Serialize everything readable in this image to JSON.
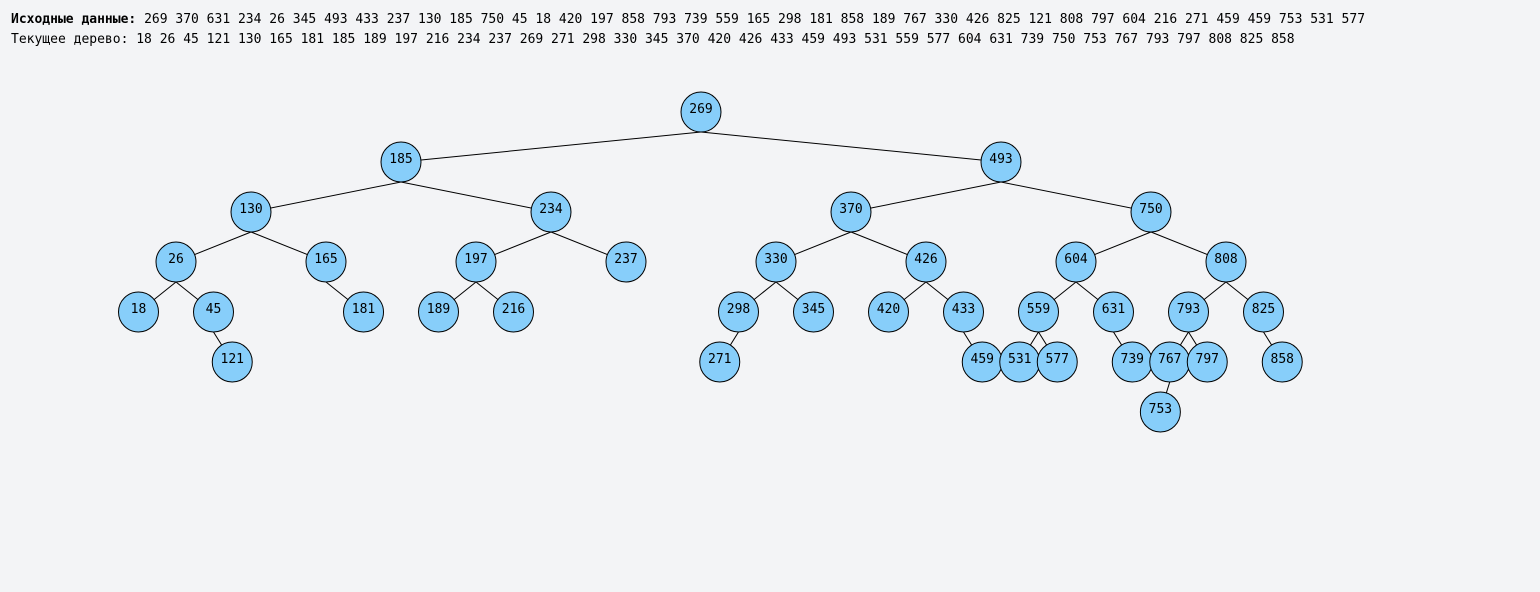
{
  "header": {
    "source_label": "Исходные данные:",
    "source_values": "269 370 631 234 26 345 493 433 237 130 185 750 45 18 420 197 858 793 739 559 165 298 181 858 189 767 330 426 825 121 808 797 604 216 271 459 459 753 531 577",
    "current_label": "Текущее дерево:",
    "current_values": "18 26 45 121 130 165 181 185 189 197 216 234 237 269 271 298 330 345 370 420 426 433 459 493 531 559 577 604 631 739 750 753 767 793 797 808 825 858"
  },
  "tree": {
    "colors": {
      "node_fill": "#87cefa",
      "node_stroke": "#000000",
      "edge": "#000000",
      "background": "#f3f4f6"
    },
    "root": {
      "v": "269",
      "l": {
        "v": "185",
        "l": {
          "v": "130",
          "l": {
            "v": "26",
            "l": {
              "v": "18"
            },
            "r": {
              "v": "45",
              "r": {
                "v": "121"
              }
            }
          },
          "r": {
            "v": "165",
            "r": {
              "v": "181"
            }
          }
        },
        "r": {
          "v": "234",
          "l": {
            "v": "197",
            "l": {
              "v": "189"
            },
            "r": {
              "v": "216"
            }
          },
          "r": {
            "v": "237"
          }
        }
      },
      "r": {
        "v": "493",
        "l": {
          "v": "370",
          "l": {
            "v": "330",
            "l": {
              "v": "298",
              "l": {
                "v": "271"
              }
            },
            "r": {
              "v": "345"
            }
          },
          "r": {
            "v": "426",
            "l": {
              "v": "420"
            },
            "r": {
              "v": "433",
              "r": {
                "v": "459"
              }
            }
          }
        },
        "r": {
          "v": "750",
          "l": {
            "v": "604",
            "l": {
              "v": "559",
              "l": {
                "v": "531"
              },
              "r": {
                "v": "577"
              }
            },
            "r": {
              "v": "631",
              "r": {
                "v": "739"
              }
            }
          },
          "r": {
            "v": "808",
            "l": {
              "v": "793",
              "l": {
                "v": "767",
                "l": {
                  "v": "753"
                }
              },
              "r": {
                "v": "797"
              }
            },
            "r": {
              "v": "825",
              "r": {
                "v": "858"
              }
            }
          }
        }
      }
    }
  }
}
